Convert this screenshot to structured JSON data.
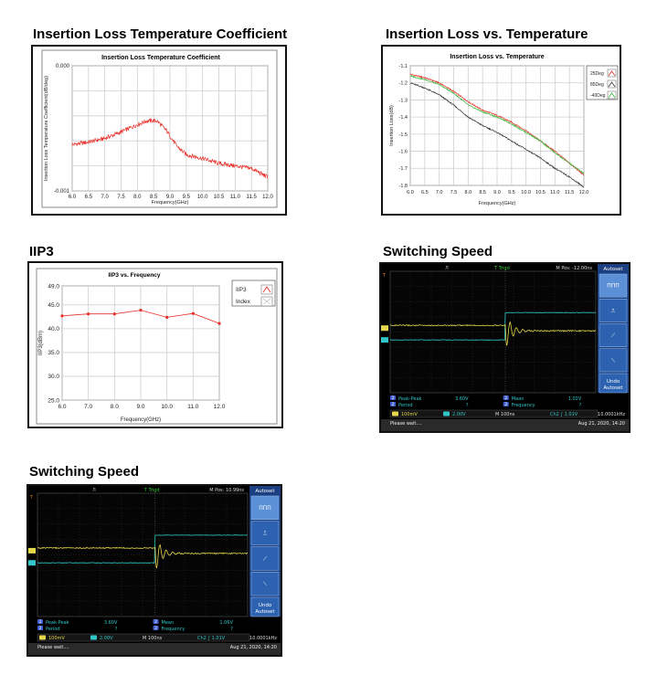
{
  "sections": {
    "il_tc": {
      "heading": "Insertion Loss Temperature Coefficient"
    },
    "il_temp": {
      "heading": "Insertion Loss vs. Temperature"
    },
    "iip3": {
      "heading": "IIP3"
    },
    "sw1": {
      "heading": "Switching Speed"
    },
    "sw2": {
      "heading": "Switching Speed"
    }
  },
  "chart_data": [
    {
      "id": "il_tc",
      "type": "line",
      "title": "Insertion Loss Temperature Coefficient",
      "xlabel": "Frequency(GHz)",
      "ylabel": "Insertion Loss Temperature Coefficient(dB/deg)",
      "xlim": [
        6.0,
        12.0
      ],
      "ylim": [
        -0.001,
        0.0
      ],
      "x_ticks": [
        "6.0",
        "6.5",
        "7.0",
        "7.5",
        "8.0",
        "8.5",
        "9.0",
        "9.5",
        "10.0",
        "10.5",
        "11.0",
        "11.5",
        "12.0"
      ],
      "y_ticks": [
        "0.000",
        "-0.001"
      ],
      "grid": true,
      "series": [
        {
          "color": "#e8302a",
          "x": [
            6.0,
            6.5,
            7.0,
            7.5,
            8.0,
            8.3,
            8.6,
            8.9,
            9.2,
            9.5,
            10.0,
            10.5,
            11.0,
            11.5,
            12.0
          ],
          "y": [
            -0.00063,
            -0.00061,
            -0.00058,
            -0.00053,
            -0.00047,
            -0.00044,
            -0.00044,
            -0.00052,
            -0.00064,
            -0.00071,
            -0.00074,
            -0.00078,
            -0.0008,
            -0.00082,
            -0.00089
          ]
        }
      ]
    },
    {
      "id": "il_temp",
      "type": "line",
      "title": "Insertion Loss vs. Temperature",
      "xlabel": "Frequency(GHz)",
      "ylabel": "Insertion Loss(dB)",
      "xlim": [
        6.0,
        12.0
      ],
      "ylim": [
        -1.8,
        -1.1
      ],
      "x_ticks": [
        "6.0",
        "6.5",
        "7.0",
        "7.5",
        "8.0",
        "8.5",
        "9.0",
        "9.5",
        "10.0",
        "10.5",
        "11.0",
        "11.5",
        "12.0"
      ],
      "y_ticks": [
        "-1.1",
        "-1.2",
        "-1.3",
        "-1.4",
        "-1.5",
        "-1.6",
        "-1.7",
        "-1.8"
      ],
      "grid": true,
      "legend_position": "top-right",
      "series": [
        {
          "name": "25Deg",
          "color": "#e8302a",
          "x": [
            6.0,
            6.5,
            7.0,
            7.5,
            8.0,
            8.5,
            9.0,
            9.5,
            10.0,
            10.5,
            11.0,
            11.5,
            12.0
          ],
          "y": [
            -1.15,
            -1.17,
            -1.2,
            -1.25,
            -1.31,
            -1.36,
            -1.39,
            -1.43,
            -1.48,
            -1.54,
            -1.6,
            -1.67,
            -1.74
          ]
        },
        {
          "name": "85Deg",
          "color": "#333333",
          "x": [
            6.0,
            6.5,
            7.0,
            7.5,
            8.0,
            8.5,
            9.0,
            9.5,
            10.0,
            10.5,
            11.0,
            11.5,
            12.0
          ],
          "y": [
            -1.2,
            -1.23,
            -1.27,
            -1.33,
            -1.4,
            -1.45,
            -1.49,
            -1.54,
            -1.59,
            -1.64,
            -1.7,
            -1.75,
            -1.81
          ]
        },
        {
          "name": "-40Deg",
          "color": "#3cb83c",
          "x": [
            6.0,
            6.5,
            7.0,
            7.5,
            8.0,
            8.5,
            9.0,
            9.5,
            10.0,
            10.5,
            11.0,
            11.5,
            12.0
          ],
          "y": [
            -1.16,
            -1.18,
            -1.21,
            -1.26,
            -1.33,
            -1.37,
            -1.4,
            -1.44,
            -1.49,
            -1.54,
            -1.61,
            -1.67,
            -1.73
          ]
        }
      ]
    },
    {
      "id": "iip3",
      "type": "line",
      "title": "IIP3 vs. Frequency",
      "xlabel": "Frequency(GHz)",
      "ylabel": "IIP3(dBm)",
      "xlim": [
        6.0,
        12.0
      ],
      "ylim": [
        25.0,
        49.0
      ],
      "x_ticks": [
        "6.0",
        "7.0",
        "8.0",
        "9.0",
        "10.0",
        "11.0",
        "12.0"
      ],
      "y_ticks": [
        "49.0",
        "45.0",
        "40.0",
        "35.0",
        "30.0",
        "25.0"
      ],
      "grid": true,
      "legend_position": "right",
      "legend_entries": [
        "IIP3",
        "Index"
      ],
      "series": [
        {
          "name": "IIP3",
          "color": "#e8302a",
          "x": [
            6.0,
            7.0,
            8.0,
            9.0,
            10.0,
            11.0,
            12.0
          ],
          "y": [
            42.7,
            43.1,
            43.1,
            43.9,
            42.4,
            43.2,
            41.1
          ]
        }
      ]
    }
  ],
  "scopes": [
    {
      "id": "sw1",
      "trigger": "T Trigd",
      "mpos": "M Pos: -12.00ns",
      "menu_title": "Autoset",
      "menu_bottom": [
        "Undo",
        "Autoset"
      ],
      "measure": [
        {
          "ch": "2",
          "label": "Peak-Peak",
          "value": "3.60V"
        },
        {
          "ch": "2",
          "label": "Mean",
          "value": "1.02V"
        },
        {
          "ch": "2",
          "label": "Period",
          "value": "?"
        },
        {
          "ch": "2",
          "label": "Frequency",
          "value": "?"
        }
      ],
      "status": {
        "ch1": "100mV",
        "ch2": "2.00V",
        "timebase": "M 100ns",
        "trig": "Ch2 ∫ 1.01V",
        "freq": "10.0001kHz"
      },
      "footer": {
        "msg": "Please wait....",
        "date": "Aug 21, 2020, 14:20"
      }
    },
    {
      "id": "sw2",
      "trigger": "T Trigd",
      "mpos": "M Pos: 10.99ns",
      "menu_title": "Autoset",
      "menu_bottom": [
        "Undo",
        "Autoset"
      ],
      "measure": [
        {
          "ch": "2",
          "label": "Peak-Peak",
          "value": "3.60V"
        },
        {
          "ch": "2",
          "label": "Mean",
          "value": "1.06V"
        },
        {
          "ch": "2",
          "label": "Period",
          "value": "?"
        },
        {
          "ch": "2",
          "label": "Frequency",
          "value": "?"
        }
      ],
      "status": {
        "ch1": "100mV",
        "ch2": "2.00V",
        "timebase": "M 100ns",
        "trig": "Ch2 ∫ 1.01V",
        "freq": "10.0001kHz"
      },
      "footer": {
        "msg": "Please wait....",
        "date": "Aug 21, 2020, 14:20"
      }
    }
  ],
  "colors": {
    "scope_bg": "#050505",
    "scope_grid": "#3a3a3a",
    "trace_yellow": "#e3d64a",
    "trace_cyan": "#31c6c8",
    "menu_blue": "#2c62b0",
    "badge_blue": "#4060d0"
  }
}
